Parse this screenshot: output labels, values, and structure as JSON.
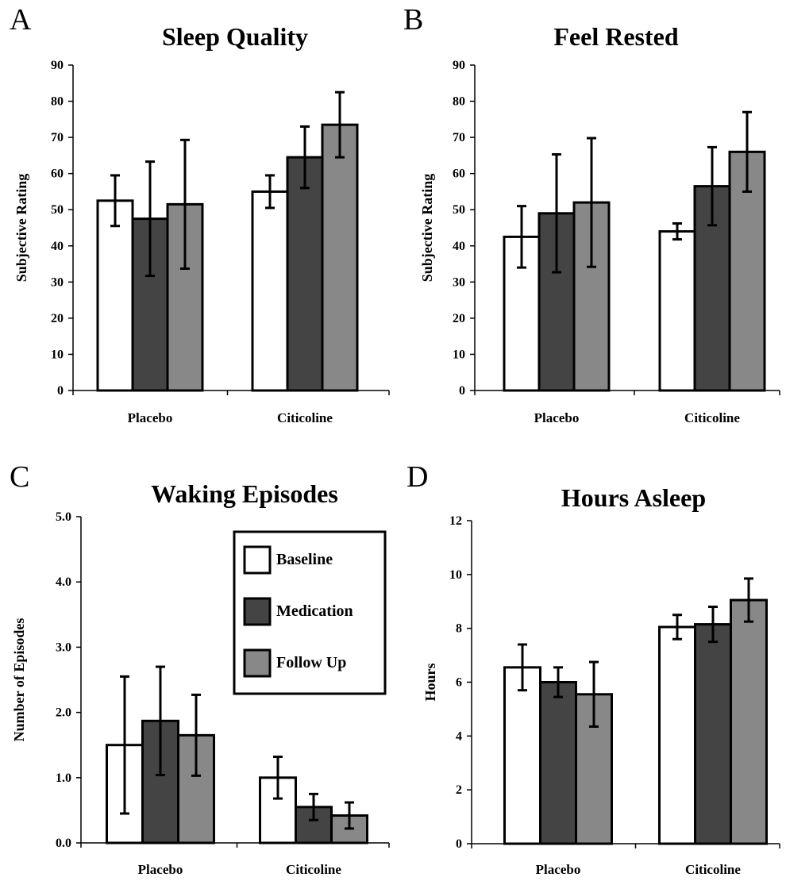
{
  "colors": {
    "Baseline": "#ffffff",
    "Medication": "#444444",
    "Follow Up": "#888888",
    "stroke": "#000000"
  },
  "legend": {
    "placement": "top-right of panel C",
    "items": [
      {
        "label": "Baseline",
        "color": "#ffffff"
      },
      {
        "label": "Medication",
        "color": "#444444"
      },
      {
        "label": "Follow Up",
        "color": "#888888"
      }
    ]
  },
  "chart_data": [
    {
      "panel": "A",
      "type": "bar",
      "title": "Sleep Quality",
      "ylabel": "Subjective Rating",
      "xlabel": "",
      "ylim": [
        0,
        90
      ],
      "yticks": [
        "0",
        "10",
        "20",
        "30",
        "40",
        "50",
        "60",
        "70",
        "80",
        "90"
      ],
      "categories": [
        "Placebo",
        "Citicoline"
      ],
      "series": [
        {
          "name": "Baseline",
          "values": [
            52.5,
            55
          ],
          "errors": [
            7,
            4.5
          ]
        },
        {
          "name": "Medication",
          "values": [
            47.5,
            64.5
          ],
          "errors": [
            15.8,
            8.5
          ]
        },
        {
          "name": "Follow Up",
          "values": [
            51.5,
            73.5
          ],
          "errors": [
            17.8,
            9
          ]
        }
      ]
    },
    {
      "panel": "B",
      "type": "bar",
      "title": "Feel Rested",
      "ylabel": "Subjective Rating",
      "xlabel": "",
      "ylim": [
        0,
        90
      ],
      "yticks": [
        "0",
        "10",
        "20",
        "30",
        "40",
        "50",
        "60",
        "70",
        "80",
        "90"
      ],
      "categories": [
        "Placebo",
        "Citicoline"
      ],
      "series": [
        {
          "name": "Baseline",
          "values": [
            42.5,
            44
          ],
          "errors": [
            8.5,
            2.2
          ]
        },
        {
          "name": "Medication",
          "values": [
            49,
            56.5
          ],
          "errors": [
            16.3,
            10.8
          ]
        },
        {
          "name": "Follow Up",
          "values": [
            52,
            66
          ],
          "errors": [
            17.8,
            11
          ]
        }
      ]
    },
    {
      "panel": "C",
      "type": "bar",
      "title": "Waking Episodes",
      "ylabel": "Number of Episodes",
      "xlabel": "",
      "ylim": [
        0,
        5
      ],
      "yticks": [
        "0.0",
        "1.0",
        "2.0",
        "3.0",
        "4.0",
        "5.0"
      ],
      "categories": [
        "Placebo",
        "Citicoline"
      ],
      "series": [
        {
          "name": "Baseline",
          "values": [
            1.5,
            1.0
          ],
          "errors": [
            1.05,
            0.32
          ]
        },
        {
          "name": "Medication",
          "values": [
            1.87,
            0.55
          ],
          "errors": [
            0.83,
            0.2
          ]
        },
        {
          "name": "Follow Up",
          "values": [
            1.65,
            0.42
          ],
          "errors": [
            0.62,
            0.2
          ]
        }
      ]
    },
    {
      "panel": "D",
      "type": "bar",
      "title": "Hours Asleep",
      "ylabel": "Hours",
      "xlabel": "",
      "ylim": [
        0,
        12
      ],
      "yticks": [
        "0",
        "2",
        "4",
        "6",
        "8",
        "10",
        "12"
      ],
      "categories": [
        "Placebo",
        "Citicoline"
      ],
      "series": [
        {
          "name": "Baseline",
          "values": [
            6.55,
            8.05
          ],
          "errors": [
            0.85,
            0.45
          ]
        },
        {
          "name": "Medication",
          "values": [
            6.0,
            8.15
          ],
          "errors": [
            0.55,
            0.65
          ]
        },
        {
          "name": "Follow Up",
          "values": [
            5.55,
            9.05
          ],
          "errors": [
            1.2,
            0.8
          ]
        }
      ]
    }
  ]
}
